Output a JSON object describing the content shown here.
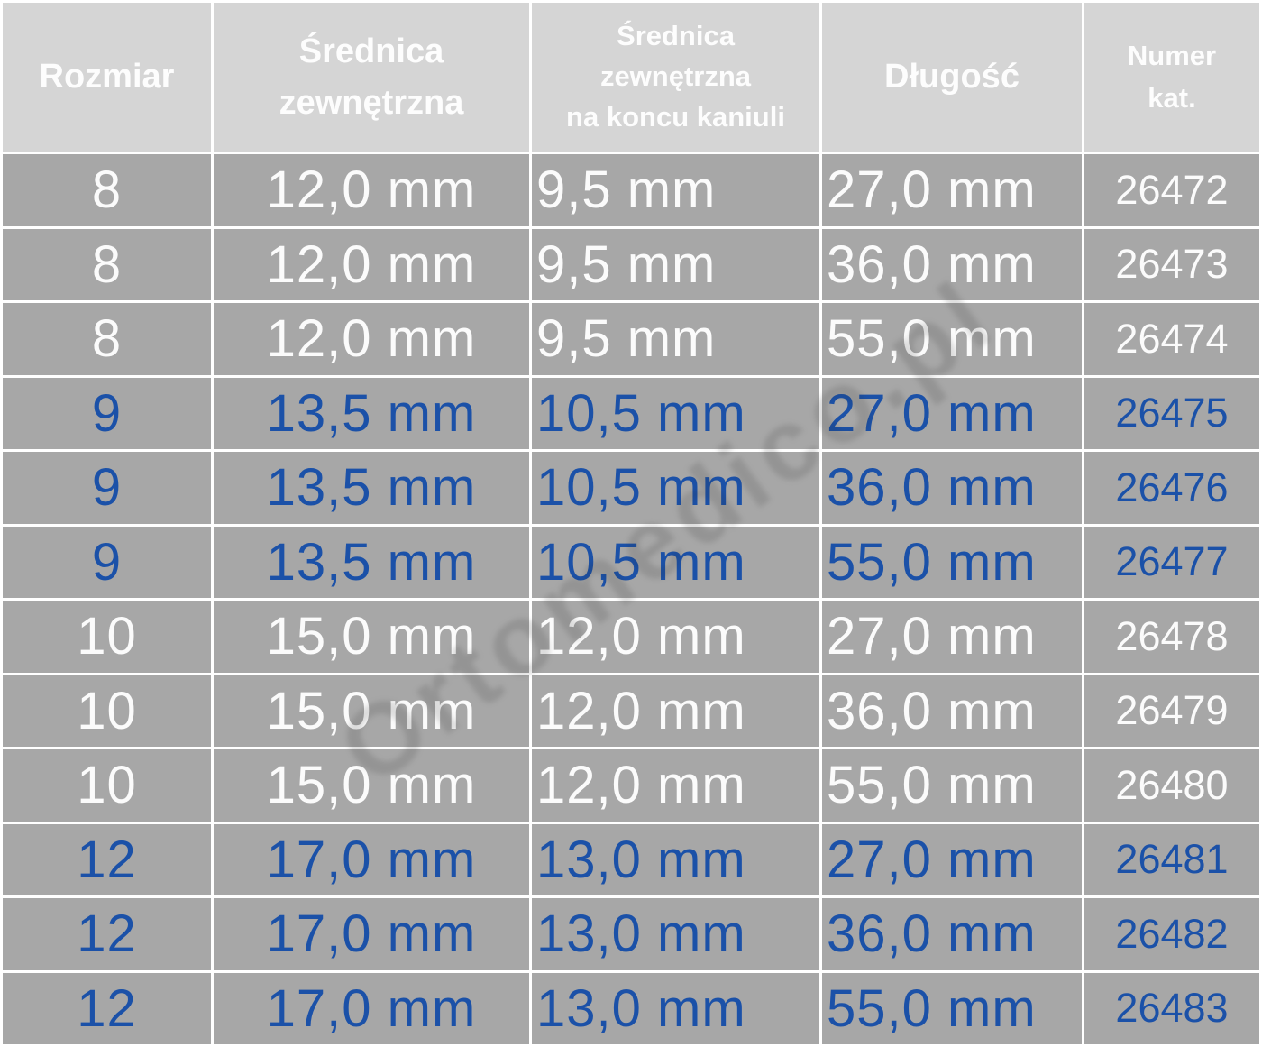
{
  "chart_data": {
    "type": "table",
    "title": "",
    "columns": [
      "Rozmiar",
      "Średnica zewnętrzna",
      "Średnica zewnętrzna na koncu kaniuli",
      "Długość",
      "Numer kat."
    ],
    "header_lines": [
      [
        "Rozmiar"
      ],
      [
        "Średnica",
        "zewnętrzna"
      ],
      [
        "Średnica",
        "zewnętrzna",
        "na koncu kaniuli"
      ],
      [
        "Długość"
      ],
      [
        "Numer",
        "kat."
      ]
    ],
    "rows": [
      [
        "8",
        "12,0 mm",
        "9,5 mm",
        "27,0 mm",
        "26472"
      ],
      [
        "8",
        "12,0 mm",
        "9,5 mm",
        "36,0 mm",
        "26473"
      ],
      [
        "8",
        "12,0 mm",
        "9,5 mm",
        "55,0 mm",
        "26474"
      ],
      [
        "9",
        "13,5 mm",
        "10,5 mm",
        "27,0 mm",
        "26475"
      ],
      [
        "9",
        "13,5 mm",
        "10,5 mm",
        "36,0 mm",
        "26476"
      ],
      [
        "9",
        "13,5 mm",
        "10,5 mm",
        "55,0 mm",
        "26477"
      ],
      [
        "10",
        "15,0 mm",
        "12,0 mm",
        "27,0 mm",
        "26478"
      ],
      [
        "10",
        "15,0 mm",
        "12,0 mm",
        "36,0 mm",
        "26479"
      ],
      [
        "10",
        "15,0 mm",
        "12,0 mm",
        "55,0 mm",
        "26480"
      ],
      [
        "12",
        "17,0 mm",
        "13,0 mm",
        "27,0 mm",
        "26481"
      ],
      [
        "12",
        "17,0 mm",
        "13,0 mm",
        "36,0 mm",
        "26482"
      ],
      [
        "12",
        "17,0 mm",
        "13,0 mm",
        "55,0 mm",
        "26483"
      ]
    ],
    "row_text_colors": [
      "white",
      "white",
      "white",
      "blue",
      "blue",
      "blue",
      "white",
      "white",
      "white",
      "blue",
      "blue",
      "blue"
    ],
    "layout": {
      "grid": "white gaps between gray cells",
      "legend_position": "none"
    }
  },
  "watermark": {
    "text": "Ortomedico.pl"
  },
  "colors": {
    "header_bg": "#d5d5d5",
    "header_text": "#fdfdfd",
    "cell_bg": "#a7a7a7",
    "white_row_text": "#fbfbfb",
    "blue_row_text": "#1b51a8",
    "grid_lines": "#ffffff"
  }
}
